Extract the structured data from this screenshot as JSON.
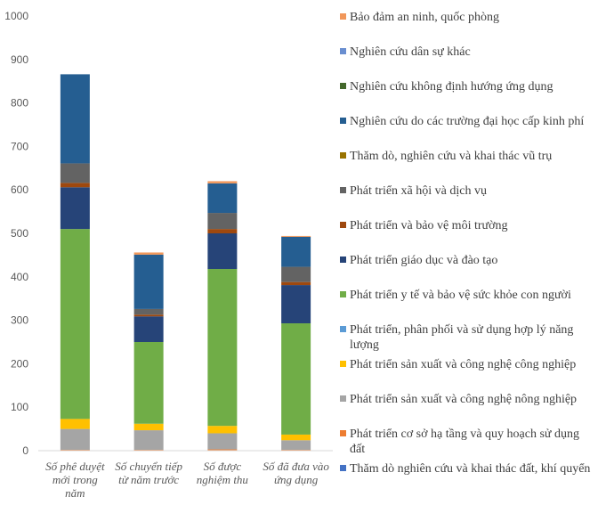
{
  "chart_data": {
    "type": "bar",
    "stacked": true,
    "categories": [
      [
        "Số phê duyệt",
        "mới trong",
        "năm"
      ],
      [
        "Số chuyển tiếp",
        "từ năm trước"
      ],
      [
        "Số được",
        "nghiệm thu"
      ],
      [
        "Số đã đưa vào",
        "ứng dụng"
      ]
    ],
    "ylim": [
      0,
      1000
    ],
    "yticks": [
      0,
      100,
      200,
      300,
      400,
      500,
      600,
      700,
      800,
      900,
      1000
    ],
    "grid": false,
    "legend_position": "right",
    "series": [
      {
        "name": [
          "Thăm dò nghiên cứu và khai thác đất, khí quyển"
        ],
        "color": "#4472c4",
        "values": [
          0,
          0,
          0,
          0
        ]
      },
      {
        "name": [
          "Phát triển cơ sở hạ tầng và quy hoạch sử dụng",
          "đất"
        ],
        "color": "#ed7d31",
        "values": [
          2,
          2,
          3,
          2
        ]
      },
      {
        "name": [
          "Phát triển sản xuất và công nghệ nông nghiệp"
        ],
        "color": "#a5a5a5",
        "values": [
          48,
          45,
          37,
          22
        ]
      },
      {
        "name": [
          "Phát triển sản xuất và công nghệ công nghiệp"
        ],
        "color": "#ffc000",
        "values": [
          23,
          15,
          17,
          13
        ]
      },
      {
        "name": [
          "Phát triển, phân phối và sử dụng hợp lý năng",
          "lượng"
        ],
        "color": "#5b9bd5",
        "values": [
          0,
          0,
          0,
          0
        ]
      },
      {
        "name": [
          "Phát triển y tế và bảo vệ sức khỏe con người"
        ],
        "color": "#70ad47",
        "values": [
          437,
          188,
          361,
          256
        ]
      },
      {
        "name": [
          "Phát triển giáo dục và đào tạo"
        ],
        "color": "#264478",
        "values": [
          96,
          59,
          82,
          88
        ]
      },
      {
        "name": [
          "Phát triển và bảo vệ môi trường"
        ],
        "color": "#9e480e",
        "values": [
          10,
          4,
          10,
          7
        ]
      },
      {
        "name": [
          "Phát triển xã hội và dịch vụ"
        ],
        "color": "#636363",
        "values": [
          45,
          13,
          37,
          35
        ]
      },
      {
        "name": [
          "Thăm dò, nghiên cứu và khai thác vũ trụ"
        ],
        "color": "#997300",
        "values": [
          0,
          0,
          0,
          0
        ]
      },
      {
        "name": [
          "Nghiên cứu do các trường đại học cấp kinh phí"
        ],
        "color": "#255e91",
        "values": [
          205,
          125,
          68,
          69
        ]
      },
      {
        "name": [
          "Nghiên cứu không định hướng ứng dụng"
        ],
        "color": "#43682b",
        "values": [
          0,
          0,
          0,
          0
        ]
      },
      {
        "name": [
          "Nghiên cứu dân sự khác"
        ],
        "color": "#698ed0",
        "values": [
          0,
          0,
          0,
          0
        ]
      },
      {
        "name": [
          "Bảo đảm an ninh, quốc phòng"
        ],
        "color": "#f1975a",
        "values": [
          0,
          5,
          5,
          2
        ]
      }
    ]
  }
}
